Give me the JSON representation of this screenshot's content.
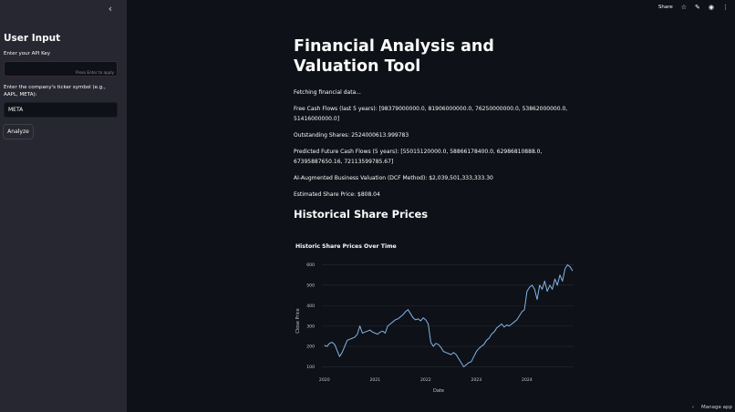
{
  "sidebar": {
    "collapse_icon": "chevron-left-icon",
    "collapse_glyph": "‹",
    "title": "User Input",
    "api_key": {
      "label": "Enter your API Key",
      "value": "",
      "hint": "Press Enter to apply"
    },
    "ticker": {
      "label": "Enter the company's ticker symbol (e.g., AAPL, META):",
      "value": "META"
    },
    "analyze_label": "Analyze"
  },
  "topbar": {
    "share_label": "Share",
    "star_glyph": "☆",
    "edit_glyph": "✎",
    "github_glyph": "◉",
    "menu_glyph": "⋮"
  },
  "main": {
    "title": "Financial Analysis and Valuation Tool",
    "status": "Fetching financial data...",
    "fcf": "Free Cash Flows (last 5 years): [98379000000.0, 81906000000.0, 76250000000.0, 53862000000.0, 51416000000.0]",
    "shares": "Outstanding Shares: 2524000613.999783",
    "predicted": "Predicted Future Cash Flows (5 years): [55015120000.0, 58866178400.0, 62986810888.0, 67395887650.16, 72113599785.67]",
    "valuation": "AI-Augmented Business Valuation (DCF Method): $2,039,501,333,333.30",
    "price": "Estimated Share Price: $808.04",
    "section_title": "Historical Share Prices"
  },
  "footer": {
    "manage_label": "Manage app",
    "chevron_glyph": "‹"
  },
  "chart_data": {
    "type": "line",
    "title": "Historic Share Prices Over Time",
    "xlabel": "Date",
    "ylabel": "Close Price",
    "ylim": [
      75,
      620
    ],
    "yticks": [
      100,
      200,
      300,
      400,
      500,
      600
    ],
    "xticks": [
      "2020",
      "2021",
      "2022",
      "2023",
      "2024"
    ],
    "grid": true,
    "line_color": "#83b4e8",
    "x": [
      2020.0,
      2020.05,
      2020.1,
      2020.15,
      2020.2,
      2020.25,
      2020.3,
      2020.35,
      2020.4,
      2020.45,
      2020.5,
      2020.55,
      2020.6,
      2020.65,
      2020.7,
      2020.75,
      2020.8,
      2020.85,
      2020.9,
      2020.95,
      2021.0,
      2021.05,
      2021.1,
      2021.15,
      2021.2,
      2021.25,
      2021.3,
      2021.35,
      2021.4,
      2021.45,
      2021.5,
      2021.55,
      2021.6,
      2021.65,
      2021.7,
      2021.75,
      2021.8,
      2021.85,
      2021.9,
      2021.95,
      2022.0,
      2022.05,
      2022.1,
      2022.15,
      2022.2,
      2022.25,
      2022.3,
      2022.35,
      2022.4,
      2022.45,
      2022.5,
      2022.55,
      2022.6,
      2022.65,
      2022.7,
      2022.75,
      2022.8,
      2022.85,
      2022.9,
      2022.95,
      2023.0,
      2023.05,
      2023.1,
      2023.15,
      2023.2,
      2023.25,
      2023.3,
      2023.35,
      2023.4,
      2023.45,
      2023.5,
      2023.55,
      2023.6,
      2023.65,
      2023.7,
      2023.75,
      2023.8,
      2023.85,
      2023.9,
      2023.95,
      2024.0,
      2024.05,
      2024.1,
      2024.15,
      2024.2,
      2024.25,
      2024.3,
      2024.35,
      2024.4,
      2024.45,
      2024.5,
      2024.55,
      2024.6,
      2024.65,
      2024.7,
      2024.75,
      2024.8,
      2024.85,
      2024.9
    ],
    "values": [
      205,
      200,
      215,
      220,
      210,
      180,
      150,
      170,
      200,
      230,
      235,
      240,
      245,
      260,
      300,
      265,
      270,
      275,
      280,
      270,
      265,
      260,
      270,
      275,
      265,
      300,
      310,
      320,
      330,
      335,
      345,
      355,
      370,
      380,
      360,
      340,
      330,
      335,
      325,
      340,
      330,
      310,
      220,
      200,
      215,
      210,
      195,
      175,
      170,
      165,
      160,
      170,
      160,
      140,
      120,
      100,
      110,
      120,
      125,
      150,
      175,
      190,
      200,
      210,
      230,
      240,
      260,
      270,
      290,
      300,
      310,
      295,
      305,
      300,
      310,
      320,
      330,
      350,
      370,
      380,
      470,
      490,
      500,
      480,
      430,
      500,
      480,
      520,
      470,
      500,
      480,
      530,
      500,
      550,
      520,
      580,
      600,
      590,
      570
    ]
  }
}
